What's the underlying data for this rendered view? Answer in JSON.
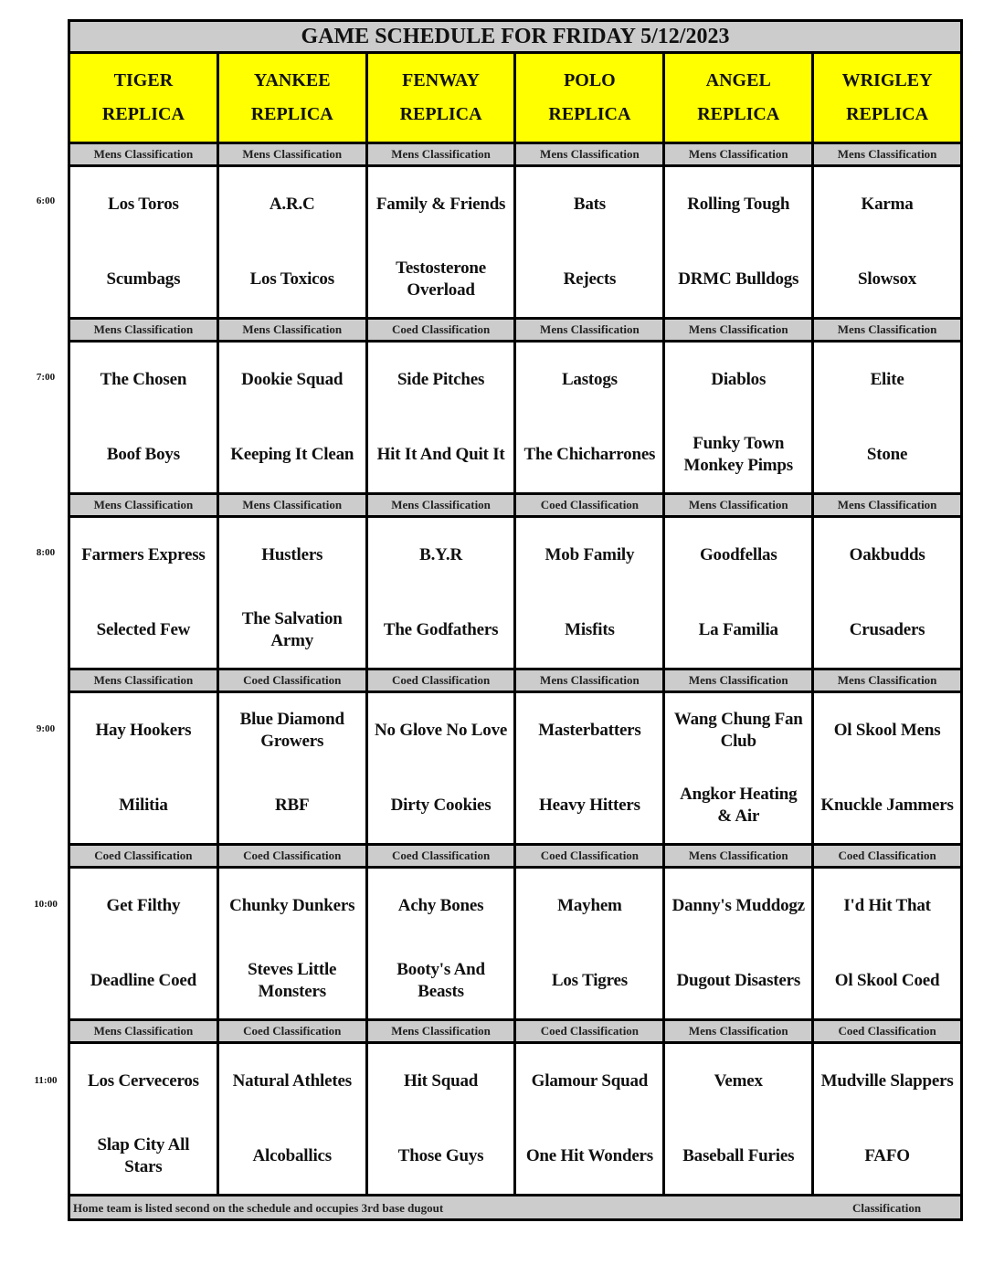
{
  "title": "GAME SCHEDULE FOR FRIDAY 5/12/2023",
  "fields": [
    {
      "name": "TIGER",
      "sub": "REPLICA"
    },
    {
      "name": "YANKEE",
      "sub": "REPLICA"
    },
    {
      "name": "FENWAY",
      "sub": "REPLICA"
    },
    {
      "name": "POLO",
      "sub": "REPLICA"
    },
    {
      "name": "ANGEL",
      "sub": "REPLICA"
    },
    {
      "name": "WRIGLEY",
      "sub": "REPLICA"
    }
  ],
  "slots": [
    {
      "time": "6:00",
      "classes": [
        "Mens Classification",
        "Mens Classification",
        "Mens Classification",
        "Mens Classification",
        "Mens Classification",
        "Mens Classification"
      ],
      "games": [
        [
          "Los Toros",
          "Scumbags"
        ],
        [
          "A.R.C",
          "Los Toxicos"
        ],
        [
          "Family & Friends",
          "Testosterone\nOverload"
        ],
        [
          "Bats",
          "Rejects"
        ],
        [
          "Rolling Tough",
          "DRMC Bulldogs"
        ],
        [
          "Karma",
          "Slowsox"
        ]
      ]
    },
    {
      "time": "7:00",
      "classes": [
        "Mens Classification",
        "Mens Classification",
        "Coed Classification",
        "Mens Classification",
        "Mens Classification",
        "Mens Classification"
      ],
      "games": [
        [
          "The Chosen",
          "Boof Boys"
        ],
        [
          "Dookie Squad",
          "Keeping It Clean"
        ],
        [
          "Side Pitches",
          "Hit It And Quit It"
        ],
        [
          "Lastogs",
          "The Chicharrones"
        ],
        [
          "Diablos",
          "Funky Town\nMonkey Pimps"
        ],
        [
          "Elite",
          "Stone"
        ]
      ]
    },
    {
      "time": "8:00",
      "classes": [
        "Mens Classification",
        "Mens Classification",
        "Mens Classification",
        "Coed Classification",
        "Mens Classification",
        "Mens Classification"
      ],
      "games": [
        [
          "Farmers Express",
          "Selected Few"
        ],
        [
          "Hustlers",
          "The Salvation\nArmy"
        ],
        [
          "B.Y.R",
          "The Godfathers"
        ],
        [
          "Mob Family",
          "Misfits"
        ],
        [
          "Goodfellas",
          "La Familia"
        ],
        [
          "Oakbudds",
          "Crusaders"
        ]
      ]
    },
    {
      "time": "9:00",
      "classes": [
        "Mens Classification",
        "Coed Classification",
        "Coed Classification",
        "Mens Classification",
        "Mens Classification",
        "Mens Classification"
      ],
      "games": [
        [
          "Hay Hookers",
          "Militia"
        ],
        [
          "Blue Diamond\nGrowers",
          "RBF"
        ],
        [
          "No Glove No Love",
          "Dirty Cookies"
        ],
        [
          "Masterbatters",
          "Heavy Hitters"
        ],
        [
          "Wang Chung Fan\nClub",
          "Angkor Heating\n& Air"
        ],
        [
          "Ol Skool Mens",
          "Knuckle Jammers"
        ]
      ]
    },
    {
      "time": "10:00",
      "classes": [
        "Coed Classification",
        "Coed Classification",
        "Coed Classification",
        "Coed Classification",
        "Mens Classification",
        "Coed Classification"
      ],
      "games": [
        [
          "Get Filthy",
          "Deadline Coed"
        ],
        [
          "Chunky Dunkers",
          "Steves Little\nMonsters"
        ],
        [
          "Achy Bones",
          "Booty's And\nBeasts"
        ],
        [
          "Mayhem",
          "Los Tigres"
        ],
        [
          "Danny's Muddogz",
          "Dugout Disasters"
        ],
        [
          "I'd Hit That",
          "Ol Skool Coed"
        ]
      ]
    },
    {
      "time": "11:00",
      "classes": [
        "Mens Classification",
        "Coed Classification",
        "Mens Classification",
        "Coed Classification",
        "Mens Classification",
        "Coed Classification"
      ],
      "games": [
        [
          "Los Cerveceros",
          "Slap City All\nStars"
        ],
        [
          "Natural Athletes",
          "Alcoballics"
        ],
        [
          "Hit Squad",
          "Those Guys"
        ],
        [
          "Glamour Squad",
          "One Hit Wonders"
        ],
        [
          "Vemex",
          "Baseball Furies"
        ],
        [
          "Mudville Slappers",
          "FAFO"
        ]
      ]
    }
  ],
  "footer": {
    "note": "Home team is listed second on the schedule and occupies 3rd base dugout",
    "classification": "Classification"
  }
}
